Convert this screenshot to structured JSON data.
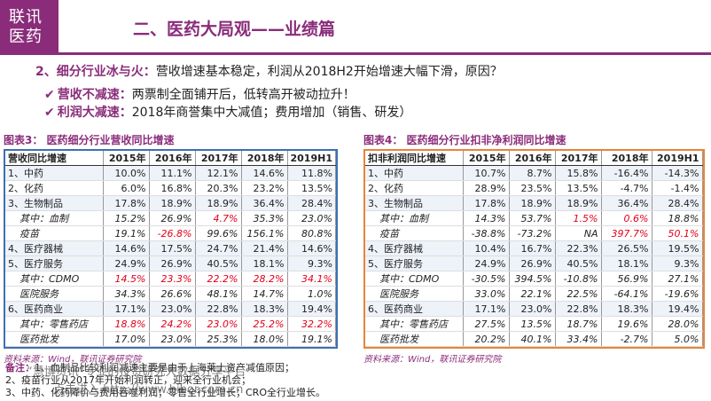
{
  "brand": {
    "line1": "联讯",
    "line2": "医药"
  },
  "header": {
    "title": "二、医药大局观——业绩篇"
  },
  "subtitle": {
    "bold": "2、细分行业冰与火：",
    "text": "营收增速基本稳定，利润从2018H2开始增速大幅下滑，原因？"
  },
  "bullets": [
    {
      "bold": "营收不减速：",
      "text": "两票制全面铺开后，低转高开被动拉升！"
    },
    {
      "bold": "利润大减速：",
      "text": "2018年商誉集中大减值；费用增加（销售、研发）"
    }
  ],
  "table_left": {
    "caption": "图表3： 医药细分行业营收同比增速",
    "header": [
      "营收同比增速",
      "2015年",
      "2016年",
      "2017年",
      "2018年",
      "2019H1"
    ],
    "rows": [
      [
        "1、中药",
        "10.0%",
        "11.1%",
        "12.1%",
        "14.6%",
        "11.8%"
      ],
      [
        "2、化药",
        "6.0%",
        "16.8%",
        "20.3%",
        "23.2%",
        "13.5%"
      ],
      [
        "3、生物制品",
        "17.8%",
        "18.9%",
        "18.9%",
        "36.4%",
        "28.4%"
      ],
      [
        "其中：血制",
        "15.2%",
        "26.9%",
        "4.7%",
        "35.3%",
        "23.0%"
      ],
      [
        "疫苗",
        "19.1%",
        "-26.8%",
        "99.6%",
        "156.1%",
        "80.8%"
      ],
      [
        "4、医疗器械",
        "14.6%",
        "17.5%",
        "24.7%",
        "21.4%",
        "14.6%"
      ],
      [
        "5、医疗服务",
        "24.9%",
        "26.9%",
        "40.5%",
        "18.1%",
        "9.3%"
      ],
      [
        "其中：CDMO",
        "14.5%",
        "23.3%",
        "22.2%",
        "28.2%",
        "34.1%"
      ],
      [
        "医院服务",
        "34.3%",
        "26.6%",
        "48.1%",
        "14.7%",
        "1.0%"
      ],
      [
        "6、医药商业",
        "17.1%",
        "23.0%",
        "22.8%",
        "18.3%",
        "19.4%"
      ],
      [
        "其中：零售药店",
        "18.8%",
        "24.2%",
        "23.0%",
        "25.2%",
        "32.2%"
      ],
      [
        "医药批发",
        "17.0%",
        "23.0%",
        "25.3%",
        "18.0%",
        "19.1%"
      ]
    ],
    "source": "资料来源：Wind，联讯证券研究院"
  },
  "table_right": {
    "caption": "图表4： 医药细分行业扣非净利润同比增速",
    "header": [
      "扣非利润同比增速",
      "2015年",
      "2016年",
      "2017年",
      "2018年",
      "2019H1"
    ],
    "rows": [
      [
        "1、中药",
        "10.7%",
        "8.7%",
        "15.8%",
        "-16.4%",
        "-14.3%"
      ],
      [
        "2、化药",
        "28.9%",
        "23.5%",
        "13.5%",
        "-4.7%",
        "-1.4%"
      ],
      [
        "3、生物制品",
        "17.8%",
        "18.9%",
        "18.9%",
        "36.4%",
        "28.4%"
      ],
      [
        "其中：血制",
        "14.3%",
        "53.7%",
        "1.5%",
        "0.6%",
        "18.8%"
      ],
      [
        "疫苗",
        "-38.8%",
        "-73.2%",
        "NA",
        "397.7%",
        "50.1%"
      ],
      [
        "4、医疗器械",
        "10.4%",
        "16.7%",
        "22.3%",
        "26.5%",
        "19.5%"
      ],
      [
        "5、医疗服务",
        "24.9%",
        "26.9%",
        "40.5%",
        "18.1%",
        "9.3%"
      ],
      [
        "其中：CDMO",
        "-30.5%",
        "394.5%",
        "-10.8%",
        "56.9%",
        "27.1%"
      ],
      [
        "医院服务",
        "33.0%",
        "22.1%",
        "22.5%",
        "-64.1%",
        "-19.6%"
      ],
      [
        "6、医药商业",
        "17.1%",
        "23.0%",
        "22.8%",
        "18.3%",
        "19.4%"
      ],
      [
        "其中：零售药店",
        "27.5%",
        "13.5%",
        "18.7%",
        "19.6%",
        "28.0%"
      ],
      [
        "医药批发",
        "20.2%",
        "40.1%",
        "33.4%",
        "-2.7%",
        "5.0%"
      ]
    ],
    "source": "资料来源：Wind，联讯证券研究院"
  },
  "notes": {
    "label": "备注：",
    "line1": "1、血制品比较利润减速主要是由于上海莱士资产减值原因；",
    "line2": "2、疫苗行业从2017年开始利润转正，迎来全行业机会；",
    "line3": "3、中药、化药降价与费用吞噬利润；零售全行业增长；CRO全行业增长。"
  },
  "watermark": {
    "line1": "“慧博资讯”专业的投资研究大数据分享平台",
    "line2": "点击进入 http://www.hibor.com.cn"
  },
  "colors": {
    "brand": "#8a2c7a",
    "left_frame": "#3d6fb3",
    "right_frame": "#e8833a",
    "highlight": "#e2001a"
  }
}
